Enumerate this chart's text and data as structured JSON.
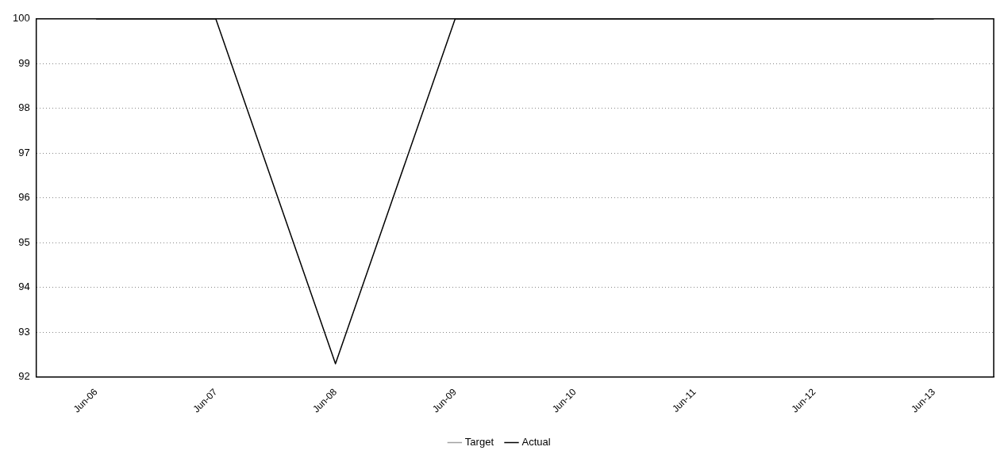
{
  "chart_data": {
    "type": "line",
    "categories": [
      "Jun-06",
      "Jun-07",
      "Jun-08",
      "Jun-09",
      "Jun-10",
      "Jun-11",
      "Jun-12",
      "Jun-13"
    ],
    "series": [
      {
        "name": "Target",
        "color": "#a0a0a0",
        "line_style": "dotted",
        "values": [
          null,
          null,
          null,
          null,
          null,
          null,
          null,
          null
        ]
      },
      {
        "name": "Actual",
        "color": "#000000",
        "line_style": "solid",
        "values": [
          100,
          100,
          92.3,
          100,
          100,
          100,
          100,
          100
        ]
      }
    ],
    "ylim": [
      92,
      100
    ],
    "yticks": [
      92,
      93,
      94,
      95,
      96,
      97,
      98,
      99,
      100
    ],
    "grid": "y",
    "legend": "bottom",
    "marker": "none"
  }
}
